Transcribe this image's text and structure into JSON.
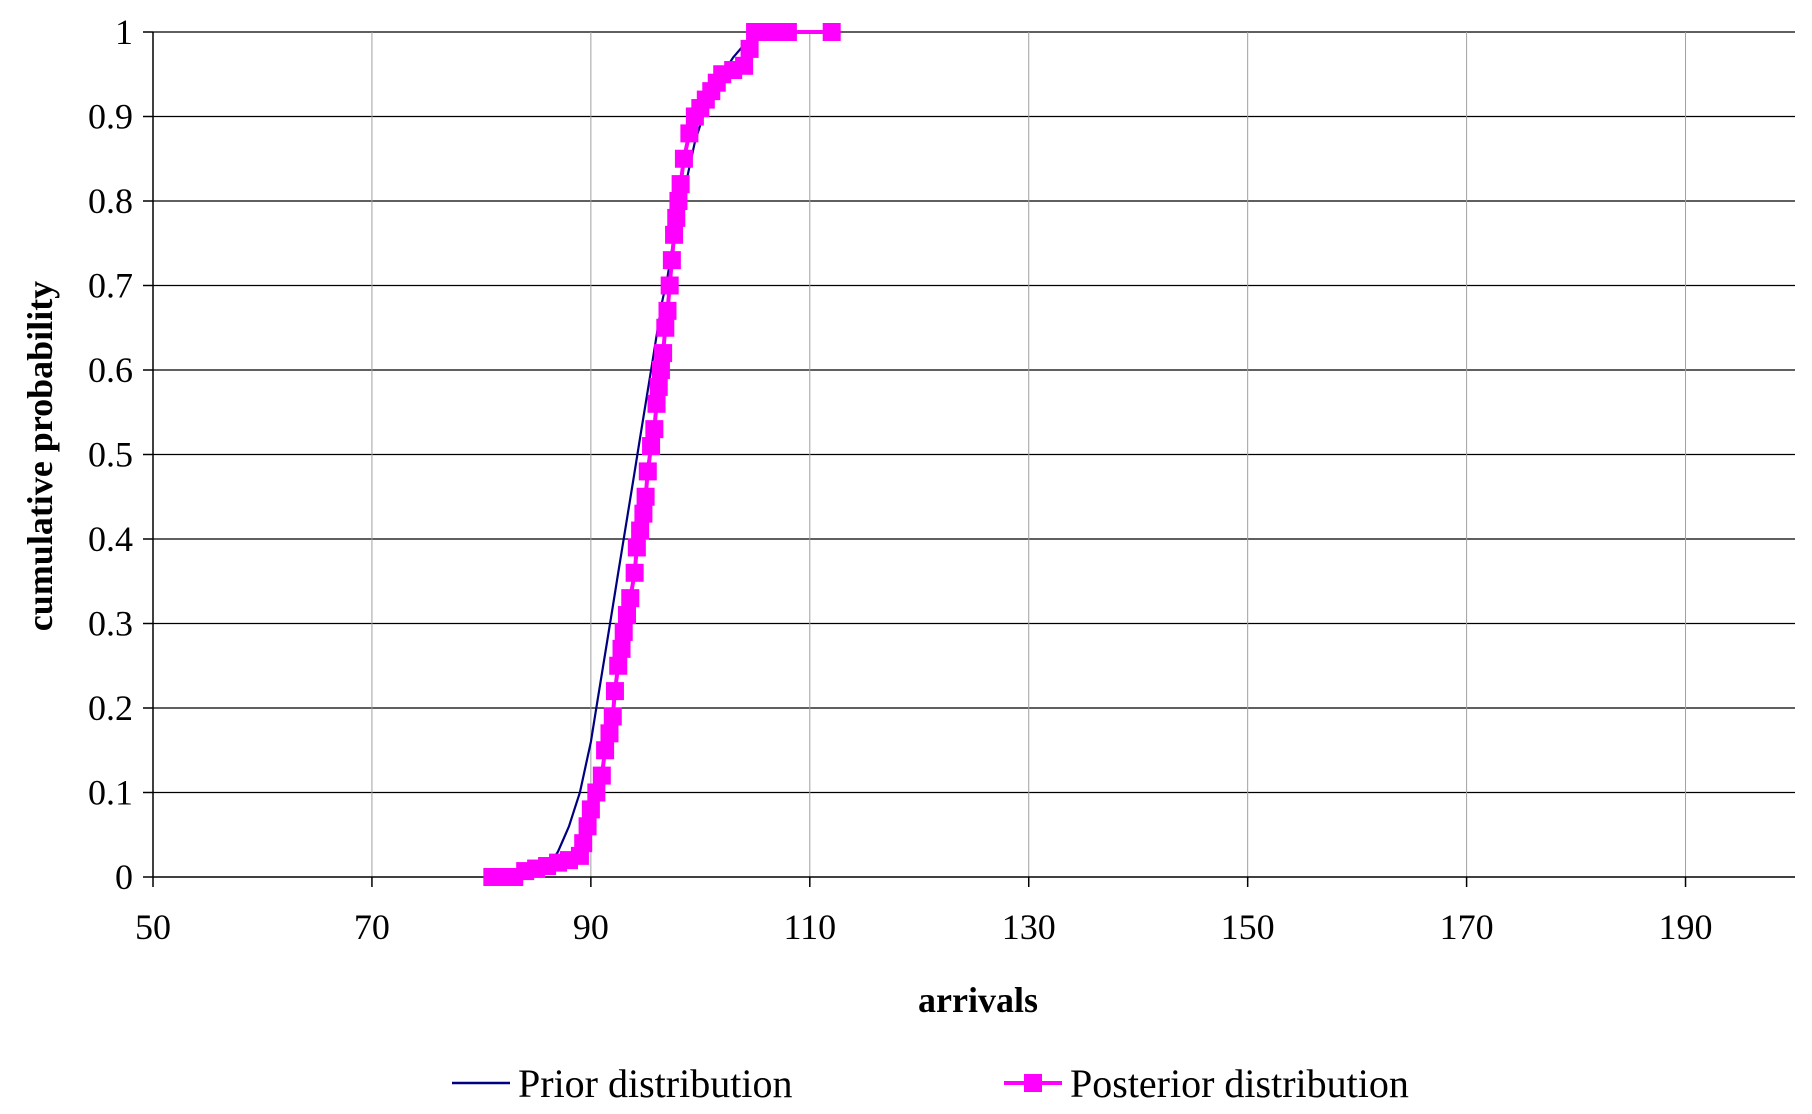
{
  "chart_data": {
    "type": "line",
    "title": "",
    "xlabel": "arrivals",
    "ylabel": "cumulative probability",
    "xlim": [
      50,
      200
    ],
    "ylim": [
      0,
      1
    ],
    "x_ticks": [
      "50",
      "70",
      "90",
      "110",
      "130",
      "150",
      "170",
      "190"
    ],
    "x_tick_values": [
      50,
      70,
      90,
      110,
      130,
      150,
      170,
      190
    ],
    "y_ticks": [
      "0",
      "0.1",
      "0.2",
      "0.3",
      "0.4",
      "0.5",
      "0.6",
      "0.7",
      "0.8",
      "0.9",
      "1"
    ],
    "y_tick_values": [
      0,
      0.1,
      0.2,
      0.3,
      0.4,
      0.5,
      0.6,
      0.7,
      0.8,
      0.9,
      1
    ],
    "grid": true,
    "legend_position": "bottom",
    "series": [
      {
        "name": "Prior distribution",
        "color": "#000080",
        "marker": "none",
        "x": [
          84,
          85,
          86,
          86.5,
          87,
          87.5,
          88,
          88.5,
          89,
          89.5,
          90,
          90.5,
          91,
          91.5,
          92,
          92.5,
          93,
          93.5,
          94,
          94.5,
          95,
          95.5,
          96,
          96.5,
          97,
          97.5,
          98,
          98.5,
          99,
          99.5,
          100,
          100.5,
          101,
          102,
          103,
          104,
          105,
          106,
          107,
          108,
          109
        ],
        "y": [
          0,
          0.005,
          0.01,
          0.02,
          0.03,
          0.045,
          0.06,
          0.08,
          0.1,
          0.13,
          0.16,
          0.2,
          0.24,
          0.28,
          0.32,
          0.36,
          0.4,
          0.44,
          0.48,
          0.52,
          0.56,
          0.6,
          0.64,
          0.68,
          0.71,
          0.75,
          0.78,
          0.81,
          0.84,
          0.87,
          0.89,
          0.91,
          0.925,
          0.95,
          0.97,
          0.985,
          0.993,
          0.997,
          0.999,
          1.0,
          1.0
        ]
      },
      {
        "name": "Posterior distribution",
        "color": "#ff00ff",
        "marker": "square",
        "x": [
          81,
          82,
          83,
          84,
          85,
          86,
          87,
          88,
          89,
          89.3,
          89.7,
          90,
          90.5,
          91,
          91.3,
          91.7,
          92,
          92.2,
          92.5,
          92.8,
          93,
          93.3,
          93.6,
          94,
          94.2,
          94.5,
          94.8,
          95,
          95.2,
          95.5,
          95.8,
          96,
          96.2,
          96.4,
          96.6,
          96.8,
          97,
          97.2,
          97.4,
          97.6,
          97.8,
          98,
          98.2,
          98.5,
          99,
          99.5,
          100,
          100.5,
          101,
          101.5,
          102,
          103,
          104,
          104.5,
          105,
          106,
          107,
          108,
          112
        ],
        "y": [
          0,
          0,
          0,
          0.007,
          0.01,
          0.013,
          0.017,
          0.02,
          0.025,
          0.04,
          0.06,
          0.08,
          0.1,
          0.12,
          0.15,
          0.17,
          0.19,
          0.22,
          0.25,
          0.27,
          0.29,
          0.31,
          0.33,
          0.36,
          0.39,
          0.41,
          0.43,
          0.45,
          0.48,
          0.51,
          0.53,
          0.56,
          0.58,
          0.6,
          0.62,
          0.65,
          0.67,
          0.7,
          0.73,
          0.76,
          0.78,
          0.8,
          0.82,
          0.85,
          0.88,
          0.9,
          0.91,
          0.92,
          0.93,
          0.94,
          0.95,
          0.955,
          0.96,
          0.98,
          1.0,
          1.0,
          1.0,
          1.0,
          1.0
        ]
      }
    ]
  }
}
